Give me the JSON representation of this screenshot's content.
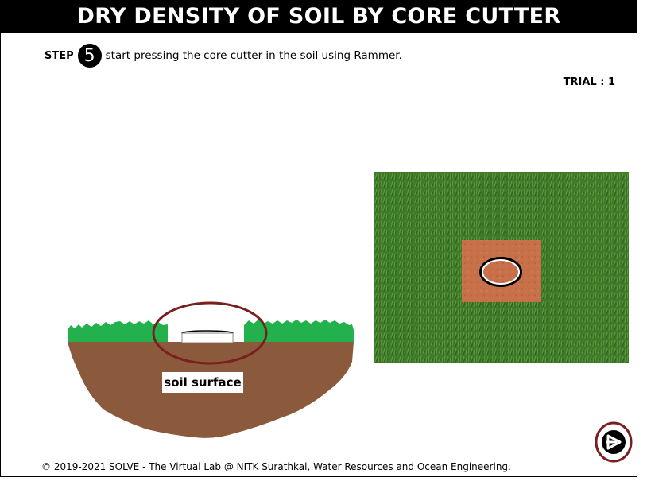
{
  "header": {
    "title": "DRY DENSITY OF SOIL BY CORE CUTTER"
  },
  "step": {
    "label": "STEP",
    "number": "5",
    "instruction": "start pressing the core cutter in the soil using Rammer."
  },
  "trial": {
    "text": "TRIAL : 1"
  },
  "diagram": {
    "soil_label": "soil surface"
  },
  "footer": {
    "text": "© 2019-2021 SOLVE - The Virtual Lab @ NITK Surathkal, Water Resources and Ocean Engineering."
  },
  "navigation": {
    "next_icon": "next-arrow-icon"
  },
  "colors": {
    "grass": "#22b14c",
    "soil": "#8b5a3c",
    "highlight_ring": "#7a1f1f",
    "turf": "#3f7a2a",
    "exposed_soil": "#c8704a"
  }
}
